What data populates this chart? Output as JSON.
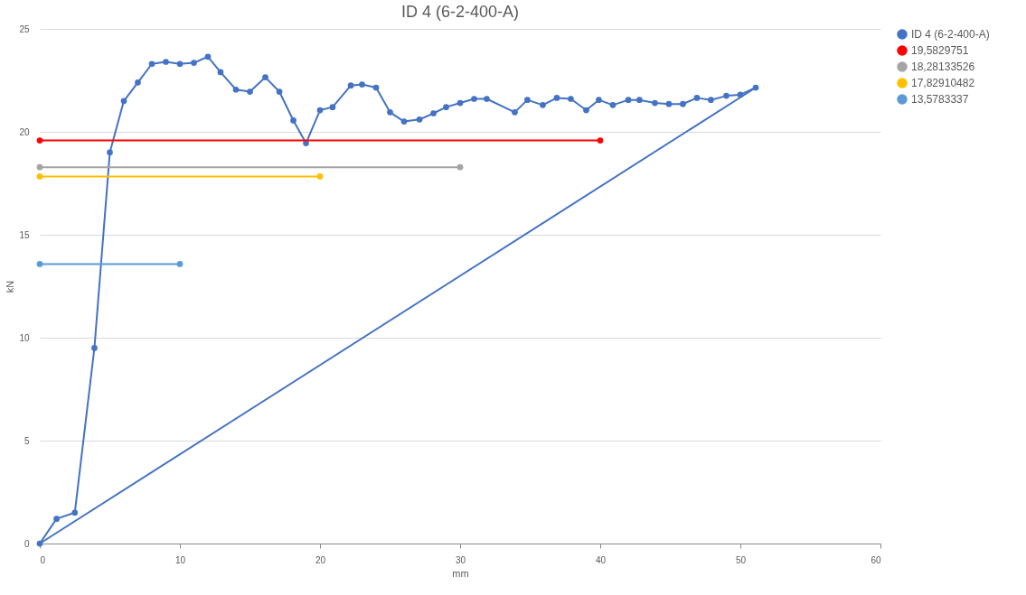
{
  "chart_data": {
    "type": "line",
    "title": "ID 4 (6-2-400-A)",
    "xlabel": "mm",
    "ylabel": "kN",
    "xlim": [
      0,
      60
    ],
    "xticks": [
      0,
      10,
      20,
      30,
      40,
      50,
      60
    ],
    "ylim": [
      0,
      25
    ],
    "yticks": [
      0,
      5,
      10,
      15,
      20,
      25
    ],
    "grid": "y",
    "legend": "right",
    "marker": "circle",
    "line_style": "solid",
    "series": [
      {
        "name": "ID 4 (6-2-400-A)",
        "type": "line",
        "color": "#4472c4",
        "x": [
          0,
          1.2,
          2.5,
          3.9,
          5.0,
          6.0,
          7.0,
          8.0,
          9.0,
          10.0,
          11.0,
          12.0,
          12.9,
          14.0,
          15.0,
          16.1,
          17.1,
          18.1,
          19.0,
          20.0,
          20.9,
          22.2,
          23.0,
          24.0,
          25.0,
          26.0,
          27.1,
          28.1,
          29.0,
          30.0,
          31.0,
          31.9,
          33.9,
          34.8,
          35.9,
          36.9,
          37.9,
          39.0,
          39.9,
          40.9,
          42.0,
          42.8,
          43.9,
          44.9,
          45.9,
          46.9,
          47.9,
          49.0,
          50.0,
          51.1
        ],
        "values": [
          0,
          1.2,
          1.5,
          9.5,
          19.0,
          21.5,
          22.4,
          23.3,
          23.4,
          23.3,
          23.35,
          23.65,
          22.9,
          22.05,
          21.95,
          22.65,
          21.95,
          20.55,
          19.45,
          21.05,
          21.2,
          22.25,
          22.3,
          22.15,
          20.95,
          20.5,
          20.6,
          20.9,
          21.2,
          21.4,
          21.6,
          21.6,
          20.95,
          21.55,
          21.3,
          21.65,
          21.6,
          21.05,
          21.55,
          21.3,
          21.55,
          21.55,
          21.4,
          21.35,
          21.35,
          21.65,
          21.55,
          21.75,
          21.8,
          22.15
        ]
      },
      {
        "type": "line",
        "marker": "none",
        "color": "#4472c4",
        "x": [
          51.1,
          0
        ],
        "values": [
          22.15,
          0
        ]
      },
      {
        "name": "19,5829751",
        "color": "#ff0000",
        "x": [
          0,
          40
        ],
        "values": [
          19.58,
          19.58
        ]
      },
      {
        "name": "18,28133526",
        "color": "#a5a5a5",
        "x": [
          0,
          30
        ],
        "values": [
          18.28,
          18.28
        ]
      },
      {
        "name": "17,82910482",
        "color": "#ffc000",
        "x": [
          0,
          20
        ],
        "values": [
          17.83,
          17.83
        ]
      },
      {
        "name": "13,5783337",
        "color": "#5b9bd5",
        "x": [
          0,
          10
        ],
        "values": [
          13.58,
          13.58
        ]
      }
    ]
  }
}
